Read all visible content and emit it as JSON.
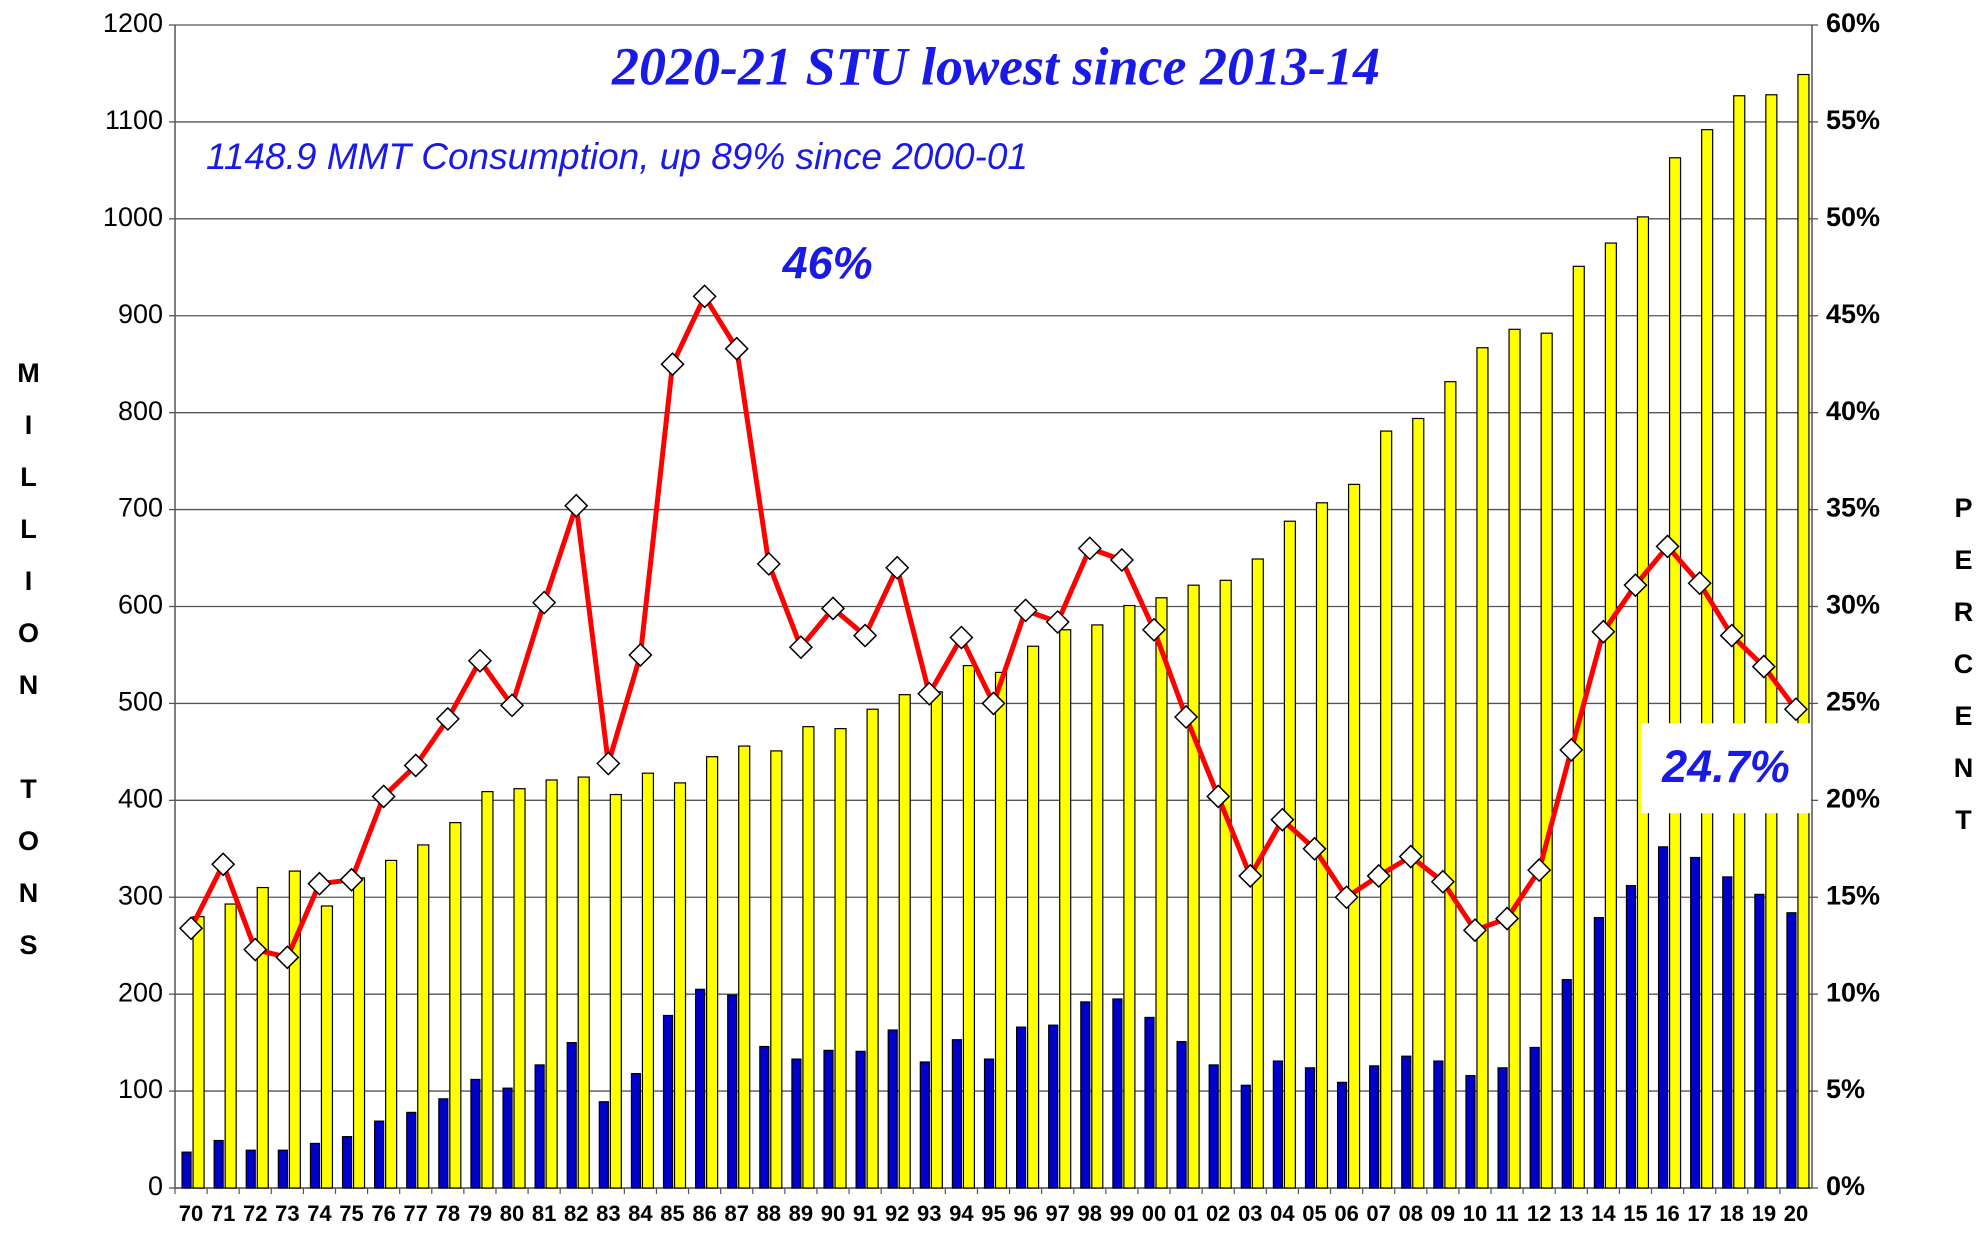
{
  "chart_data": {
    "type": "bar",
    "title": "2020-21 STU lowest since 2013-14",
    "subtitle": "1148.9 MMT Consumption, up 89% since 2000-01",
    "y_label": "MILLION TONS",
    "y2_label": "PERCENT",
    "categories": [
      "70",
      "71",
      "72",
      "73",
      "74",
      "75",
      "76",
      "77",
      "78",
      "79",
      "80",
      "81",
      "82",
      "83",
      "84",
      "85",
      "86",
      "87",
      "88",
      "89",
      "90",
      "91",
      "92",
      "93",
      "94",
      "95",
      "96",
      "97",
      "98",
      "99",
      "00",
      "01",
      "02",
      "03",
      "04",
      "05",
      "06",
      "07",
      "08",
      "09",
      "10",
      "11",
      "12",
      "13",
      "14",
      "15",
      "16",
      "17",
      "18",
      "19",
      "20"
    ],
    "series": [
      {
        "type": "bar",
        "color": "#ffff00",
        "values": [
          280,
          293,
          310,
          327,
          291,
          320,
          338,
          354,
          377,
          409,
          412,
          421,
          424,
          406,
          428,
          418,
          445,
          456,
          451,
          476,
          474,
          494,
          509,
          512,
          539,
          532,
          559,
          576,
          581,
          601,
          609,
          622,
          627,
          649,
          688,
          707,
          726,
          781,
          794,
          832,
          867,
          886,
          882,
          951,
          975,
          1002,
          1063,
          1092,
          1127,
          1128,
          1148.9
        ]
      },
      {
        "type": "bar",
        "color": "#0000cc",
        "values": [
          37,
          49,
          39,
          39,
          46,
          53,
          69,
          78,
          92,
          112,
          103,
          127,
          150,
          89,
          118,
          178,
          205,
          199,
          146,
          133,
          142,
          141,
          163,
          130,
          153,
          133,
          166,
          168,
          192,
          195,
          176,
          151,
          127,
          106,
          131,
          124,
          109,
          126,
          136,
          131,
          116,
          124,
          145,
          215,
          279,
          312,
          352,
          341,
          321,
          303,
          284
        ]
      },
      {
        "type": "line",
        "axis": "y2",
        "color": "#ff0000",
        "values": [
          13.4,
          16.7,
          12.3,
          11.9,
          15.7,
          15.9,
          20.2,
          21.8,
          24.2,
          27.2,
          24.9,
          30.2,
          35.2,
          21.9,
          27.5,
          42.5,
          46,
          43.3,
          32.2,
          27.9,
          29.9,
          28.5,
          32.0,
          25.5,
          28.4,
          25.0,
          29.8,
          29.2,
          33.0,
          32.4,
          28.8,
          24.3,
          20.2,
          16.1,
          19.0,
          17.5,
          15.0,
          16.1,
          17.1,
          15.8,
          13.3,
          13.9,
          16.4,
          22.6,
          28.7,
          31.1,
          33.1,
          31.2,
          28.5,
          26.9,
          24.7
        ],
        "value_labels": [
          null,
          null,
          null,
          null,
          null,
          null,
          null,
          null,
          null,
          null,
          null,
          null,
          null,
          null,
          null,
          null,
          "46%",
          null,
          null,
          null,
          null,
          null,
          null,
          null,
          null,
          null,
          null,
          null,
          null,
          null,
          null,
          null,
          null,
          null,
          null,
          null,
          null,
          null,
          null,
          null,
          null,
          null,
          null,
          null,
          null,
          null,
          null,
          null,
          null,
          null,
          "24.7%"
        ]
      }
    ],
    "ylim": [
      0,
      1200
    ],
    "yticks": [
      0,
      100,
      200,
      300,
      400,
      500,
      600,
      700,
      800,
      900,
      1000,
      1100,
      1200
    ],
    "y2lim": [
      0,
      60
    ],
    "y2ticks": [
      {
        "value": 0,
        "label": "0%"
      },
      {
        "value": 5,
        "label": "5%"
      },
      {
        "value": 10,
        "label": "10%"
      },
      {
        "value": 15,
        "label": "15%"
      },
      {
        "value": 20,
        "label": "20%"
      },
      {
        "value": 25,
        "label": "25%"
      },
      {
        "value": 30,
        "label": "30%"
      },
      {
        "value": 35,
        "label": "35%"
      },
      {
        "value": 40,
        "label": "40%"
      },
      {
        "value": 45,
        "label": "45%"
      },
      {
        "value": 50,
        "label": "50%"
      },
      {
        "value": 55,
        "label": "55%"
      },
      {
        "value": 60,
        "label": "60%"
      }
    ],
    "grid": true
  }
}
